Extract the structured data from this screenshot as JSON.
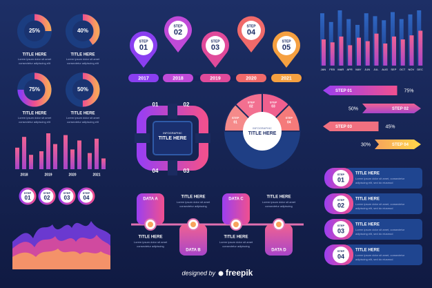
{
  "donuts": [
    {
      "value": 25,
      "label": "25%",
      "title": "TITLE HERE",
      "text": [
        "Lorem ipsum dolor sit amet",
        "consectetur adipiscing elit"
      ]
    },
    {
      "value": 40,
      "label": "40%",
      "title": "TITLE HERE",
      "text": [
        "Lorem ipsum dolor sit amet",
        "consectetur adipiscing elit"
      ]
    },
    {
      "value": 75,
      "label": "75%",
      "title": "TITLE HERE",
      "text": [
        "Lorem ipsum dolor sit amet",
        "consectetur adipiscing elit"
      ]
    },
    {
      "value": 50,
      "label": "50%",
      "title": "TITLE HERE",
      "text": [
        "Lorem ipsum dolor sit amet",
        "consectetur adipiscing elit"
      ]
    }
  ],
  "bar_chart": {
    "categories": [
      "2018",
      "2019",
      "2020",
      "2021"
    ],
    "values": [
      [
        60,
        90,
        40
      ],
      [
        50,
        100,
        70
      ],
      [
        95,
        55,
        80
      ],
      [
        45,
        85,
        30
      ]
    ]
  },
  "step_pills": [
    {
      "label": "STEP",
      "number": "01"
    },
    {
      "label": "STEP",
      "number": "02"
    },
    {
      "label": "STEP",
      "number": "03"
    },
    {
      "label": "STEP",
      "number": "04"
    }
  ],
  "pins": [
    {
      "label": "STEP",
      "number": "01",
      "year": "2017"
    },
    {
      "label": "STEP",
      "number": "02",
      "year": "2018"
    },
    {
      "label": "STEP",
      "number": "03",
      "year": "2019"
    },
    {
      "label": "STEP",
      "number": "04",
      "year": "2020"
    },
    {
      "label": "STEP",
      "number": "05",
      "year": "2021"
    }
  ],
  "square": {
    "title": [
      "INFOGRAPHIC",
      "TITLE HERE"
    ],
    "numbers": [
      "01",
      "02",
      "03",
      "04"
    ]
  },
  "semicircle": {
    "title": [
      "INFOGRAPHIC",
      "TITLE HERE"
    ],
    "steps": [
      {
        "label": "STEP",
        "number": "01"
      },
      {
        "label": "STEP",
        "number": "02"
      },
      {
        "label": "STEP",
        "number": "03"
      },
      {
        "label": "STEP",
        "number": "04"
      }
    ]
  },
  "month_chart": {
    "categories": [
      "JAN",
      "FEB",
      "MAR",
      "APR",
      "MAY",
      "JUN",
      "JUL",
      "AUG",
      "SEP",
      "OCT",
      "NOV",
      "DEC"
    ],
    "series": [
      {
        "values": [
          90,
          75,
          95,
          80,
          70,
          90,
          85,
          78,
          92,
          80,
          88,
          95
        ]
      },
      {
        "values": [
          45,
          40,
          50,
          35,
          48,
          42,
          55,
          38,
          50,
          45,
          52,
          60
        ]
      }
    ]
  },
  "arrows": [
    {
      "step": "STEP 01",
      "value": 75,
      "label": "75%"
    },
    {
      "step": "STEP 02",
      "value": 50,
      "label": "50%"
    },
    {
      "step": "STEP 03",
      "value": 45,
      "label": "45%"
    },
    {
      "step": "STEP 04",
      "value": 30,
      "label": "30%"
    }
  ],
  "timeline": [
    {
      "data": "DATA A",
      "title": "TITLE HERE",
      "text": [
        "Lorem ipsum dolor sit amet",
        "consectetur adipiscing"
      ]
    },
    {
      "data": "DATA B",
      "title": "TITLE HERE",
      "text": [
        "Lorem ipsum dolor sit amet",
        "consectetur adipiscing"
      ]
    },
    {
      "data": "DATA C",
      "title": "TITLE HERE",
      "text": [
        "Lorem ipsum dolor sit amet",
        "consectetur adipiscing"
      ]
    },
    {
      "data": "DATA D",
      "title": "TITLE HERE",
      "text": [
        "Lorem ipsum dolor sit amet",
        "consectetur adipiscing"
      ]
    }
  ],
  "cards": [
    {
      "label": "STEP",
      "number": "01",
      "title": "TITLE HERE",
      "text": [
        "Lorem ipsum dolor sit amet, consectetur",
        "adipiscing elit, sed do eiusmod"
      ]
    },
    {
      "label": "STEP",
      "number": "02",
      "title": "TITLE HERE",
      "text": [
        "Lorem ipsum dolor sit amet, consectetur",
        "adipiscing elit, sed do eiusmod"
      ]
    },
    {
      "label": "STEP",
      "number": "03",
      "title": "TITLE HERE",
      "text": [
        "Lorem ipsum dolor sit amet, consectetur",
        "adipiscing elit, sed do eiusmod"
      ]
    },
    {
      "label": "STEP",
      "number": "04",
      "title": "TITLE HERE",
      "text": [
        "Lorem ipsum dolor sit amet, consectetur",
        "adipiscing elit, sed do eiusmod"
      ]
    }
  ],
  "footer": {
    "prefix": "designed by",
    "brand": "freepik"
  }
}
